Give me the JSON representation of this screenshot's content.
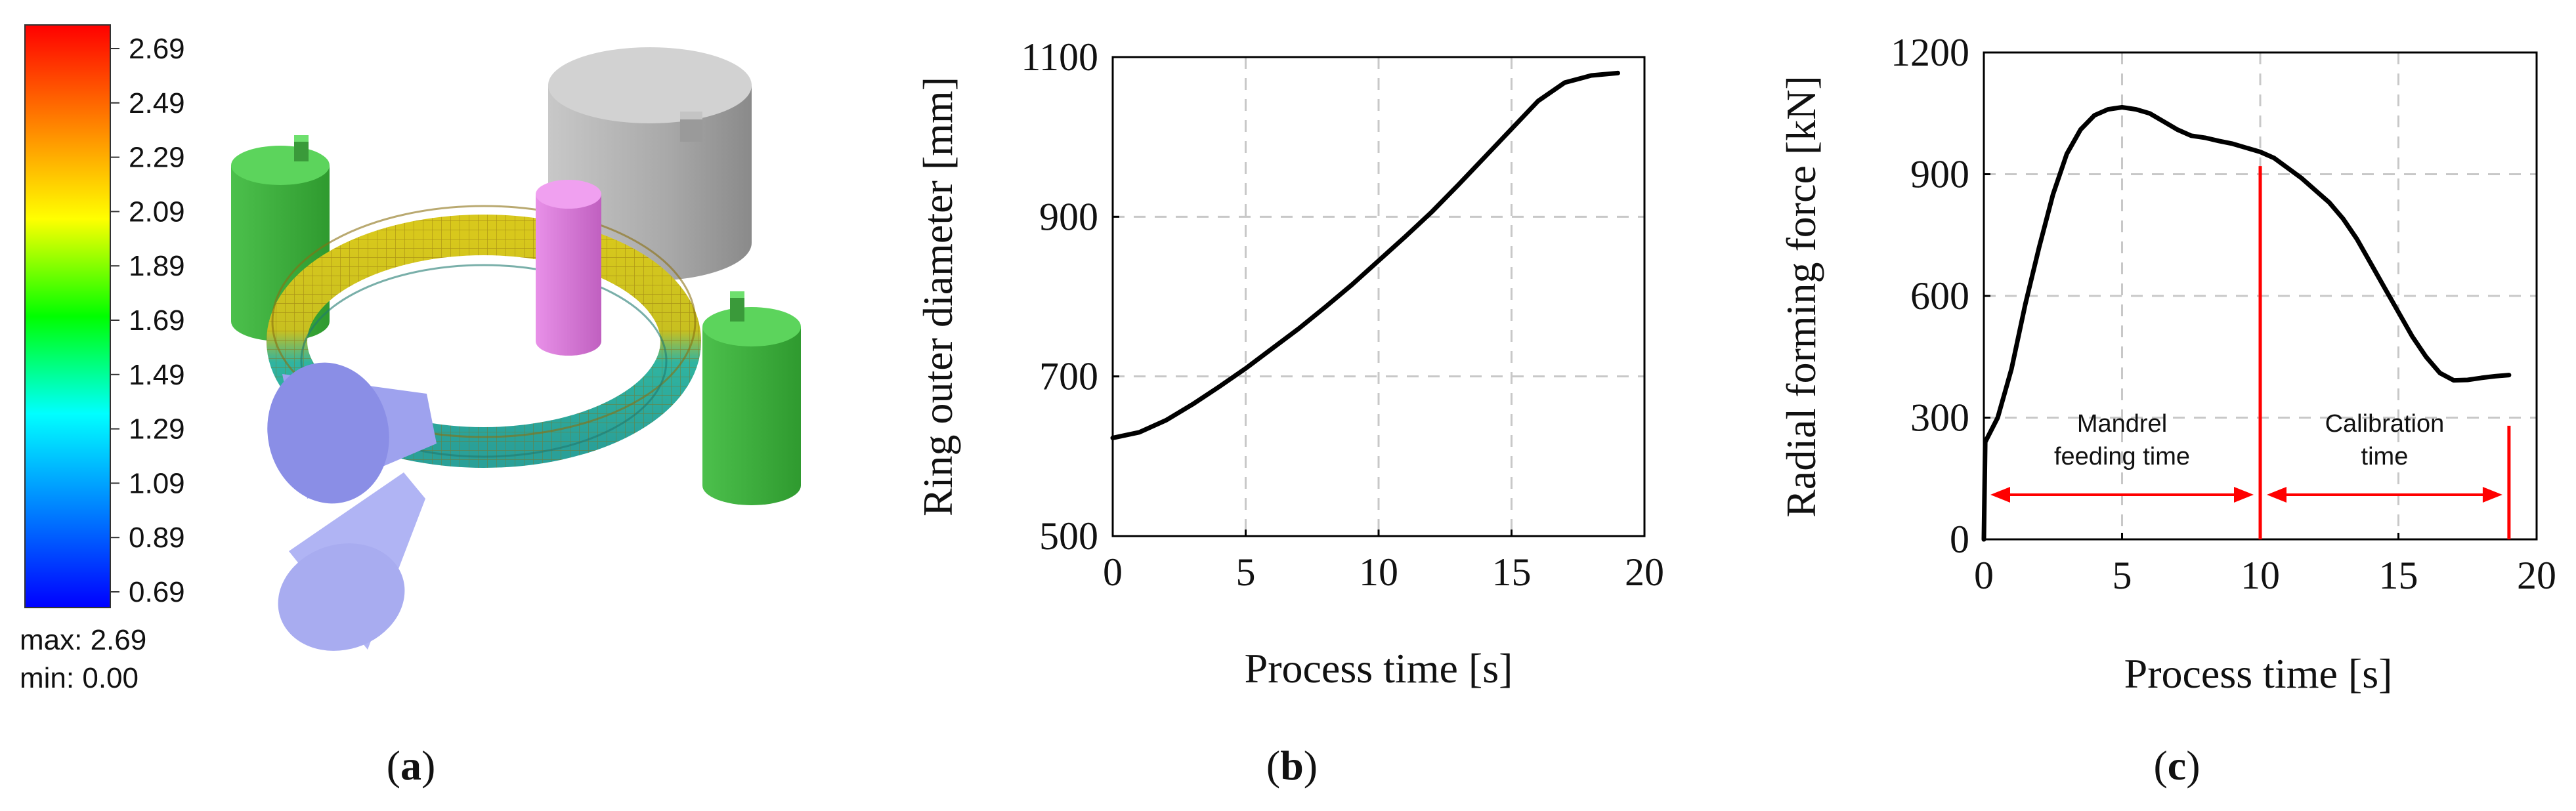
{
  "panels": {
    "a": {
      "caption": "a",
      "legend": {
        "ticks": [
          "2.69",
          "2.49",
          "2.29",
          "2.09",
          "1.89",
          "1.69",
          "1.49",
          "1.29",
          "1.09",
          "0.89",
          "0.69"
        ],
        "max_text": "max: 2.69",
        "min_text": "min:  0.00",
        "gradient_stops": [
          "#ff0000",
          "#ff8000",
          "#ffff00",
          "#00ff00",
          "#00ffff",
          "#0080ff",
          "#0000ff"
        ]
      },
      "scene": {
        "colors": {
          "die_green": "#3cb43c",
          "die_top": "#55dd55",
          "roll_gray": "#b4b4b4",
          "mandrel_pink": "#dd77dd",
          "cone_blue": "#8a8ee6",
          "ring_yellow": "#d6c21a",
          "ring_cyan": "#28b0a0"
        }
      }
    }
  },
  "chart_data": [
    {
      "type": "line",
      "caption": "b",
      "xlabel": "Process time [s]",
      "ylabel": "Ring outer diameter [mm]",
      "xlim": [
        0,
        20
      ],
      "ylim": [
        500,
        1100
      ],
      "xticks": [
        "0",
        "5",
        "10",
        "15",
        "20"
      ],
      "yticks": [
        "500",
        "700",
        "900",
        "1100"
      ],
      "grid": true,
      "series": [
        {
          "x": [
            0,
            1,
            2,
            3,
            4,
            5,
            6,
            7,
            8,
            9,
            10,
            11,
            12,
            13,
            14,
            15,
            16,
            17,
            18,
            19
          ],
          "values": [
            623,
            630,
            645,
            665,
            687,
            710,
            735,
            760,
            787,
            815,
            845,
            875,
            906,
            940,
            975,
            1010,
            1045,
            1068,
            1077,
            1080
          ],
          "color": "#000000"
        }
      ]
    },
    {
      "type": "line",
      "caption": "c",
      "xlabel": "Process time [s]",
      "ylabel": "Radial forming force [kN]",
      "xlim": [
        0,
        20
      ],
      "ylim": [
        0,
        1200
      ],
      "xticks": [
        "0",
        "5",
        "10",
        "15",
        "20"
      ],
      "yticks": [
        "0",
        "300",
        "600",
        "900",
        "1200"
      ],
      "grid": true,
      "series": [
        {
          "x": [
            0,
            0.05,
            0.5,
            1,
            1.5,
            2,
            2.5,
            3,
            3.5,
            4,
            4.5,
            5,
            5.5,
            6,
            6.5,
            7,
            7.5,
            8,
            8.5,
            9,
            9.5,
            10,
            10.5,
            11,
            11.5,
            12,
            12.5,
            13,
            13.5,
            14,
            14.5,
            15,
            15.5,
            16,
            16.5,
            17,
            17.5,
            18,
            18.5,
            19
          ],
          "values": [
            0,
            240,
            300,
            420,
            580,
            720,
            850,
            950,
            1010,
            1045,
            1060,
            1065,
            1060,
            1050,
            1030,
            1010,
            995,
            990,
            982,
            975,
            965,
            955,
            940,
            915,
            890,
            860,
            830,
            790,
            740,
            680,
            620,
            560,
            500,
            450,
            410,
            392,
            393,
            398,
            402,
            405
          ],
          "color": "#000000"
        }
      ],
      "annotations": [
        {
          "text_lines": [
            "Mandrel",
            "feeding time"
          ],
          "from": 0,
          "to": 10,
          "level": 110
        },
        {
          "text_lines": [
            "Calibration",
            "time"
          ],
          "from": 10,
          "to": 19,
          "level": 110
        }
      ],
      "markers": [
        {
          "x": 10,
          "from": 0,
          "to": 920
        },
        {
          "x": 19,
          "from": 0,
          "to": 280
        }
      ],
      "annotation_color": "#ff0000"
    }
  ]
}
